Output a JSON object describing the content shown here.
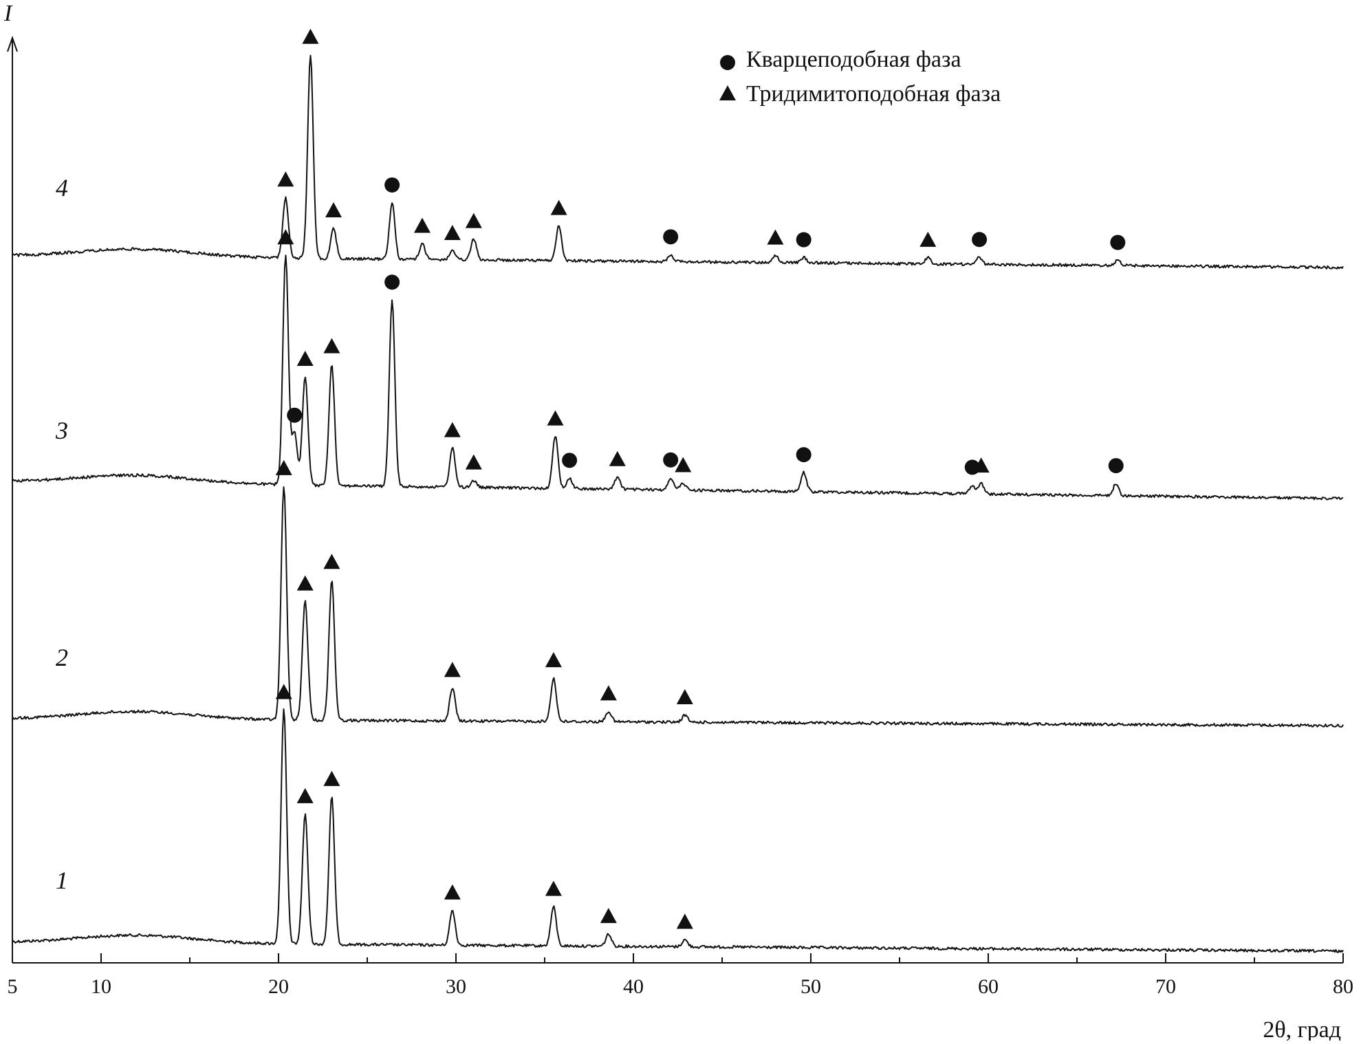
{
  "chart_data": {
    "type": "line",
    "xlabel": "2θ, град",
    "ylabel": "I",
    "xlim": [
      5,
      80
    ],
    "x_ticks": [
      5,
      10,
      20,
      30,
      40,
      50,
      60,
      70,
      80
    ],
    "grid": false,
    "legend_position": "top-right",
    "legend": [
      {
        "marker": "circle",
        "label": "Кварцеподобная фаза"
      },
      {
        "marker": "triangle",
        "label": "Тридимитоподобная фаза"
      }
    ],
    "series": [
      {
        "name": "1",
        "peaks": [
          {
            "x": 20.3,
            "h": 270,
            "phase": "triangle"
          },
          {
            "x": 21.5,
            "h": 150,
            "phase": "triangle"
          },
          {
            "x": 23.0,
            "h": 170,
            "phase": "triangle"
          },
          {
            "x": 29.8,
            "h": 40,
            "phase": "triangle"
          },
          {
            "x": 35.5,
            "h": 45,
            "phase": "triangle"
          },
          {
            "x": 38.6,
            "h": 14,
            "phase": "triangle"
          },
          {
            "x": 42.9,
            "h": 8,
            "phase": "triangle"
          }
        ]
      },
      {
        "name": "2",
        "peaks": [
          {
            "x": 20.3,
            "h": 270,
            "phase": "triangle"
          },
          {
            "x": 21.5,
            "h": 137,
            "phase": "triangle"
          },
          {
            "x": 23.0,
            "h": 162,
            "phase": "triangle"
          },
          {
            "x": 29.8,
            "h": 38,
            "phase": "triangle"
          },
          {
            "x": 35.5,
            "h": 50,
            "phase": "triangle"
          },
          {
            "x": 38.6,
            "h": 12,
            "phase": "triangle"
          },
          {
            "x": 42.9,
            "h": 8,
            "phase": "triangle"
          }
        ]
      },
      {
        "name": "3",
        "peaks": [
          {
            "x": 20.4,
            "h": 265,
            "phase": "triangle"
          },
          {
            "x": 20.9,
            "h": 60,
            "phase": "circle"
          },
          {
            "x": 21.5,
            "h": 125,
            "phase": "triangle"
          },
          {
            "x": 23.0,
            "h": 140,
            "phase": "triangle"
          },
          {
            "x": 26.4,
            "h": 215,
            "phase": "circle"
          },
          {
            "x": 29.8,
            "h": 45,
            "phase": "triangle"
          },
          {
            "x": 31.0,
            "h": 8,
            "phase": "triangle"
          },
          {
            "x": 35.6,
            "h": 60,
            "phase": "triangle"
          },
          {
            "x": 36.4,
            "h": 12,
            "phase": "circle"
          },
          {
            "x": 39.1,
            "h": 14,
            "phase": "triangle"
          },
          {
            "x": 42.1,
            "h": 14,
            "phase": "circle"
          },
          {
            "x": 42.8,
            "h": 8,
            "phase": "triangle"
          },
          {
            "x": 49.6,
            "h": 22,
            "phase": "circle"
          },
          {
            "x": 59.1,
            "h": 10,
            "phase": "circle"
          },
          {
            "x": 59.6,
            "h": 12,
            "phase": "triangle"
          },
          {
            "x": 67.2,
            "h": 14,
            "phase": "circle"
          }
        ]
      },
      {
        "name": "4",
        "peaks": [
          {
            "x": 20.4,
            "h": 70,
            "phase": "triangle"
          },
          {
            "x": 21.8,
            "h": 235,
            "phase": "triangle"
          },
          {
            "x": 23.1,
            "h": 35,
            "phase": "triangle"
          },
          {
            "x": 26.4,
            "h": 65,
            "phase": "circle"
          },
          {
            "x": 28.1,
            "h": 18,
            "phase": "triangle"
          },
          {
            "x": 29.8,
            "h": 10,
            "phase": "triangle"
          },
          {
            "x": 31.0,
            "h": 24,
            "phase": "triangle"
          },
          {
            "x": 35.8,
            "h": 40,
            "phase": "triangle"
          },
          {
            "x": 42.1,
            "h": 8,
            "phase": "circle"
          },
          {
            "x": 48.0,
            "h": 8,
            "phase": "triangle"
          },
          {
            "x": 49.6,
            "h": 6,
            "phase": "circle"
          },
          {
            "x": 56.6,
            "h": 7,
            "phase": "triangle"
          },
          {
            "x": 59.5,
            "h": 8,
            "phase": "circle"
          },
          {
            "x": 67.3,
            "h": 6,
            "phase": "circle"
          }
        ]
      }
    ]
  }
}
